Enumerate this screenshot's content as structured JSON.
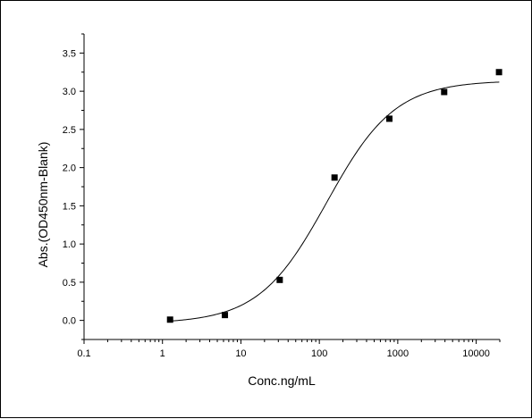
{
  "chart_data": {
    "type": "scatter",
    "title": "",
    "xlabel": "Conc.ng/mL",
    "ylabel": "Abs.(OD450nm-Blank)",
    "x_scale": "log",
    "xlim": [
      0.1,
      20000
    ],
    "ylim": [
      -0.25,
      3.75
    ],
    "x_ticks": [
      0.1,
      1,
      10,
      100,
      1000,
      10000
    ],
    "x_tick_labels": [
      "0.1",
      "1",
      "10",
      "100",
      "1000",
      "10000"
    ],
    "y_ticks": [
      0.0,
      0.5,
      1.0,
      1.5,
      2.0,
      2.5,
      3.0,
      3.5
    ],
    "y_tick_labels": [
      "0.0",
      "0.5",
      "1.0",
      "1.5",
      "2.0",
      "2.5",
      "3.0",
      "3.5"
    ],
    "grid": false,
    "series": [
      {
        "marker": "square",
        "color": "#000000",
        "x": [
          1.25,
          6.25,
          31.25,
          156.25,
          781.25,
          3906.25,
          19531.25
        ],
        "y": [
          0.01,
          0.07,
          0.53,
          1.87,
          2.64,
          2.99,
          3.25
        ]
      }
    ],
    "fit_curve": {
      "model": "4PL",
      "color": "#000000",
      "bottom": -0.04,
      "top": 3.14,
      "ec50": 125,
      "hill": 1.0
    }
  }
}
